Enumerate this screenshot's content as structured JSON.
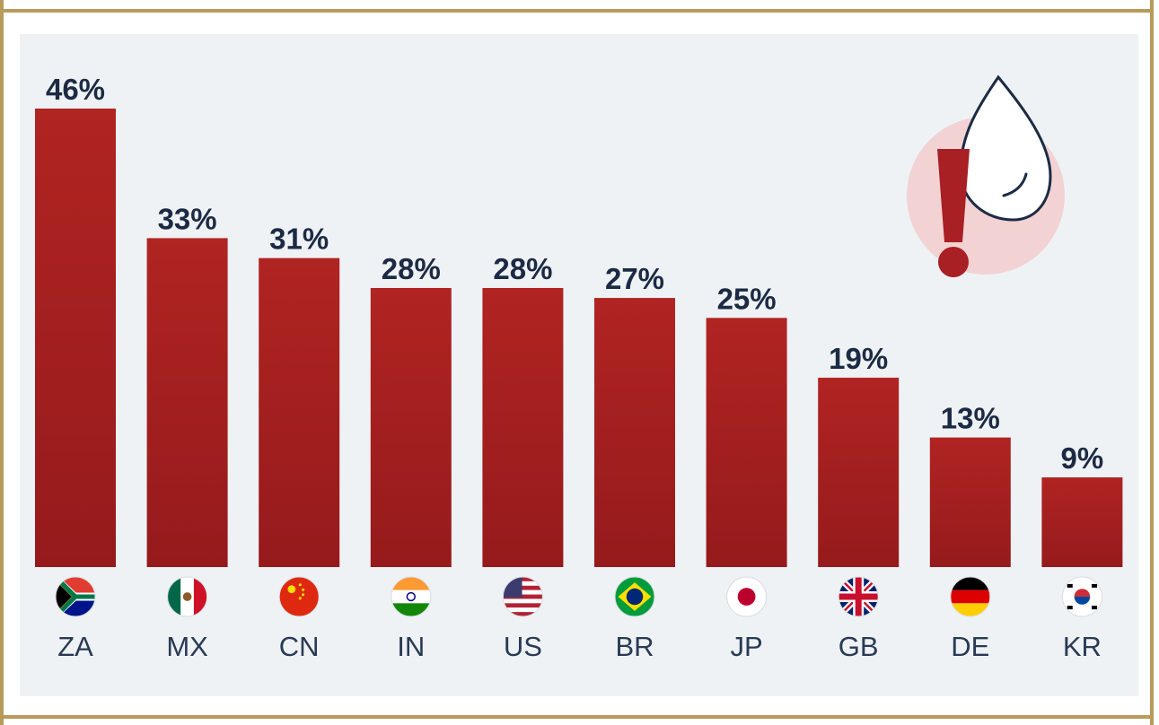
{
  "chart_data": {
    "type": "bar",
    "categories": [
      "ZA",
      "MX",
      "CN",
      "IN",
      "US",
      "BR",
      "JP",
      "GB",
      "DE",
      "KR"
    ],
    "values": [
      46,
      33,
      31,
      28,
      28,
      27,
      25,
      19,
      13,
      9
    ],
    "value_labels": [
      "46%",
      "33%",
      "31%",
      "28%",
      "28%",
      "27%",
      "25%",
      "19%",
      "13%",
      "9%"
    ],
    "flags": [
      "za-flag-icon",
      "mx-flag-icon",
      "cn-flag-icon",
      "in-flag-icon",
      "us-flag-icon",
      "br-flag-icon",
      "jp-flag-icon",
      "gb-flag-icon",
      "de-flag-icon",
      "kr-flag-icon"
    ],
    "ylim": [
      0,
      46
    ],
    "grid": false,
    "bar_color": "#b02422",
    "bar_color_dark": "#961a1c",
    "label_color": "#1c2a44",
    "category_color": "#2a3a55"
  },
  "decoration": {
    "icon": "water-drop-warning-icon",
    "circle_color": "#f2d2d3",
    "mark_color": "#a81f24"
  }
}
